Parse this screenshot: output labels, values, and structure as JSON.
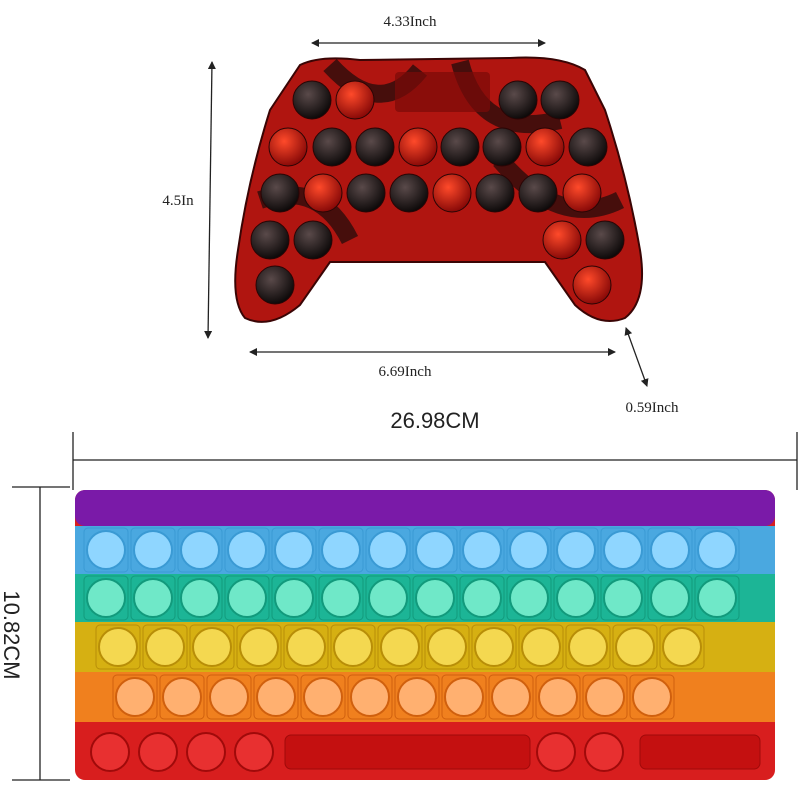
{
  "controller": {
    "width_top": "4.33Inch",
    "height": "4.5In",
    "width_bottom": "6.69Inch",
    "depth": "0.59Inch"
  },
  "keyboard": {
    "width": "26.98CM",
    "height": "10.82CM"
  }
}
